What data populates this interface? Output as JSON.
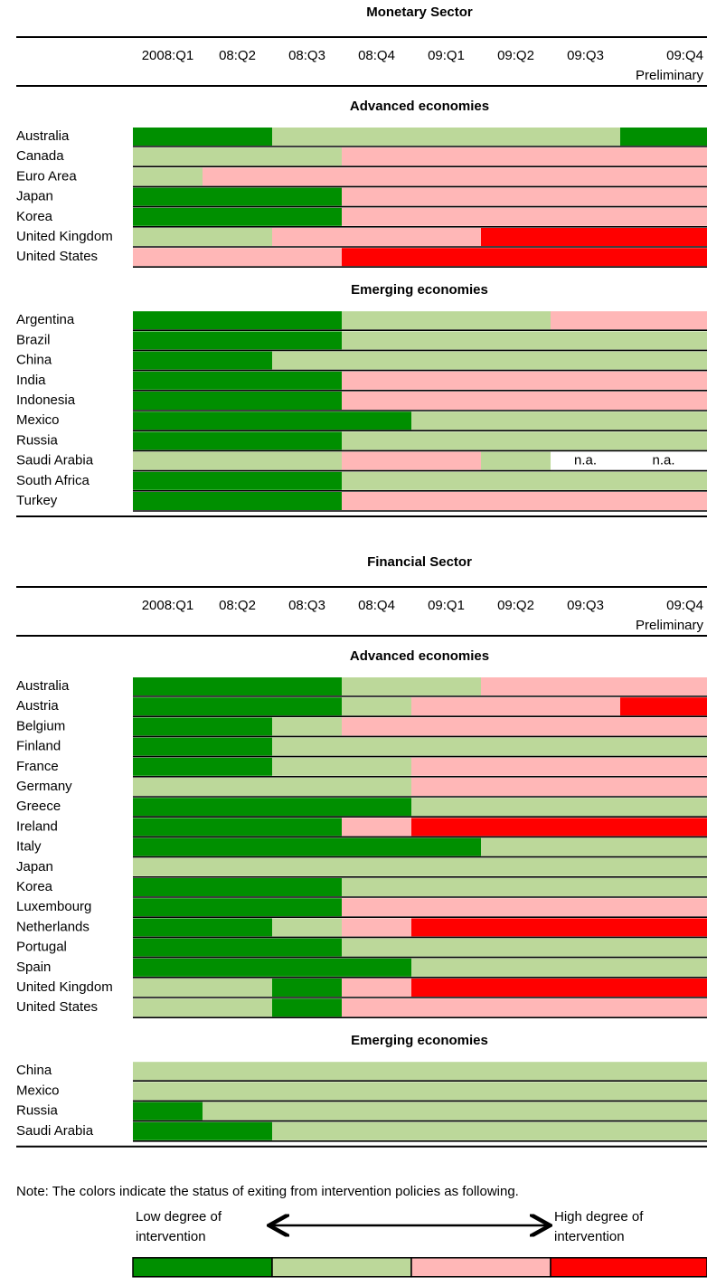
{
  "sections": [
    {
      "title": "Monetary Sector",
      "columns": [
        "2008:Q1",
        "08:Q2",
        "08:Q3",
        "08:Q4",
        "09:Q1",
        "09:Q2",
        "09:Q3",
        "09:Q4"
      ],
      "column_note": "Preliminary",
      "groups": [
        {
          "name": "Advanced economies",
          "rows": [
            {
              "label": "Australia",
              "cells": [
                1,
                1,
                2,
                2,
                2,
                2,
                2,
                1
              ]
            },
            {
              "label": "Canada",
              "cells": [
                2,
                2,
                2,
                3,
                3,
                3,
                3,
                3
              ]
            },
            {
              "label": "Euro Area",
              "cells": [
                2,
                3,
                3,
                3,
                3,
                3,
                3,
                3
              ]
            },
            {
              "label": "Japan",
              "cells": [
                1,
                1,
                1,
                3,
                3,
                3,
                3,
                3
              ]
            },
            {
              "label": "Korea",
              "cells": [
                1,
                1,
                1,
                3,
                3,
                3,
                3,
                3
              ]
            },
            {
              "label": "United Kingdom",
              "cells": [
                2,
                2,
                3,
                3,
                3,
                4,
                4,
                4
              ]
            },
            {
              "label": "United States",
              "cells": [
                3,
                3,
                3,
                4,
                4,
                4,
                4,
                4
              ]
            }
          ]
        },
        {
          "name": "Emerging economies",
          "rows": [
            {
              "label": "Argentina",
              "cells": [
                1,
                1,
                1,
                2,
                2,
                2,
                3,
                3
              ]
            },
            {
              "label": "Brazil",
              "cells": [
                1,
                1,
                1,
                2,
                2,
                2,
                2,
                2
              ]
            },
            {
              "label": "China",
              "cells": [
                1,
                1,
                2,
                2,
                2,
                2,
                2,
                2
              ]
            },
            {
              "label": "India",
              "cells": [
                1,
                1,
                1,
                3,
                3,
                3,
                3,
                3
              ]
            },
            {
              "label": "Indonesia",
              "cells": [
                1,
                1,
                1,
                3,
                3,
                3,
                3,
                3
              ]
            },
            {
              "label": "Mexico",
              "cells": [
                1,
                1,
                1,
                1,
                2,
                2,
                2,
                2
              ]
            },
            {
              "label": "Russia",
              "cells": [
                1,
                1,
                1,
                2,
                2,
                2,
                2,
                2
              ]
            },
            {
              "label": "Saudi Arabia",
              "cells": [
                2,
                2,
                2,
                3,
                3,
                2,
                "n.a.",
                "n.a."
              ]
            },
            {
              "label": "South Africa",
              "cells": [
                1,
                1,
                1,
                2,
                2,
                2,
                2,
                2
              ]
            },
            {
              "label": "Turkey",
              "cells": [
                1,
                1,
                1,
                3,
                3,
                3,
                3,
                3
              ]
            }
          ]
        }
      ]
    },
    {
      "title": "Financial Sector",
      "columns": [
        "2008:Q1",
        "08:Q2",
        "08:Q3",
        "08:Q4",
        "09:Q1",
        "09:Q2",
        "09:Q3",
        "09:Q4"
      ],
      "column_note": "Preliminary",
      "groups": [
        {
          "name": "Advanced economies",
          "rows": [
            {
              "label": "Australia",
              "cells": [
                1,
                1,
                1,
                2,
                2,
                3,
                3,
                3
              ]
            },
            {
              "label": "Austria",
              "cells": [
                1,
                1,
                1,
                2,
                3,
                3,
                3,
                4
              ]
            },
            {
              "label": "Belgium",
              "cells": [
                1,
                1,
                2,
                3,
                3,
                3,
                3,
                3
              ]
            },
            {
              "label": "Finland",
              "cells": [
                1,
                1,
                2,
                2,
                2,
                2,
                2,
                2
              ]
            },
            {
              "label": "France",
              "cells": [
                1,
                1,
                2,
                2,
                3,
                3,
                3,
                3
              ]
            },
            {
              "label": "Germany",
              "cells": [
                2,
                2,
                2,
                2,
                3,
                3,
                3,
                3
              ]
            },
            {
              "label": "Greece",
              "cells": [
                1,
                1,
                1,
                1,
                2,
                2,
                2,
                2
              ]
            },
            {
              "label": "Ireland",
              "cells": [
                1,
                1,
                1,
                3,
                4,
                4,
                4,
                4
              ]
            },
            {
              "label": "Italy",
              "cells": [
                1,
                1,
                1,
                1,
                1,
                2,
                2,
                2
              ]
            },
            {
              "label": "Japan",
              "cells": [
                2,
                2,
                2,
                2,
                2,
                2,
                2,
                2
              ]
            },
            {
              "label": "Korea",
              "cells": [
                1,
                1,
                1,
                2,
                2,
                2,
                2,
                2
              ]
            },
            {
              "label": "Luxembourg",
              "cells": [
                1,
                1,
                1,
                3,
                3,
                3,
                3,
                3
              ]
            },
            {
              "label": "Netherlands",
              "cells": [
                1,
                1,
                2,
                3,
                4,
                4,
                4,
                4
              ]
            },
            {
              "label": "Portugal",
              "cells": [
                1,
                1,
                1,
                2,
                2,
                2,
                2,
                2
              ]
            },
            {
              "label": "Spain",
              "cells": [
                1,
                1,
                1,
                1,
                2,
                2,
                2,
                2
              ]
            },
            {
              "label": "United Kingdom",
              "cells": [
                2,
                2,
                1,
                3,
                4,
                4,
                4,
                4
              ]
            },
            {
              "label": "United States",
              "cells": [
                2,
                2,
                1,
                3,
                3,
                3,
                3,
                3
              ]
            }
          ]
        },
        {
          "name": "Emerging economies",
          "rows": [
            {
              "label": "China",
              "cells": [
                2,
                2,
                2,
                2,
                2,
                2,
                2,
                2
              ]
            },
            {
              "label": "Mexico",
              "cells": [
                2,
                2,
                2,
                2,
                2,
                2,
                2,
                2
              ]
            },
            {
              "label": "Russia",
              "cells": [
                1,
                2,
                2,
                2,
                2,
                2,
                2,
                2
              ]
            },
            {
              "label": "Saudi Arabia",
              "cells": [
                1,
                1,
                2,
                2,
                2,
                2,
                2,
                2
              ]
            }
          ]
        }
      ]
    }
  ],
  "status_colors": [
    "#008f00",
    "#bcd89a",
    "#ffb7b7",
    "#ff0000"
  ],
  "note": "Note: The colors indicate the status of exiting from intervention policies as following.",
  "legend": {
    "low": [
      "Low degree of",
      "intervention"
    ],
    "high": [
      "High degree of",
      "intervention"
    ]
  }
}
